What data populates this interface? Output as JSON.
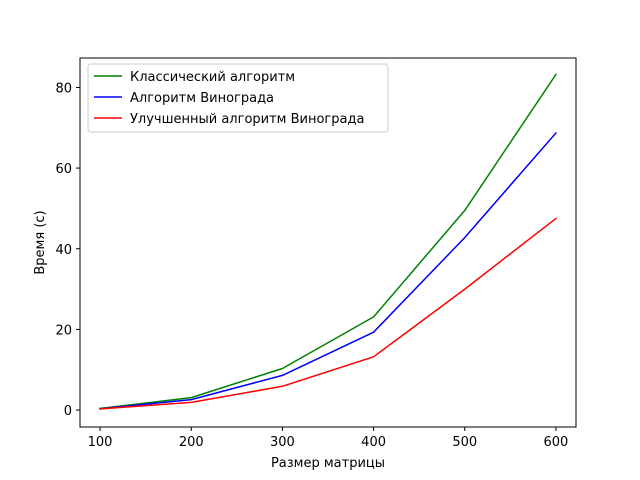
{
  "chart_data": {
    "type": "line",
    "title": "",
    "xlabel": "Размер матрицы",
    "ylabel": "Время (с)",
    "x": [
      100,
      200,
      300,
      400,
      500,
      600
    ],
    "xlim": [
      78,
      622
    ],
    "ylim": [
      -4.2,
      87.3
    ],
    "xticks": [
      100,
      200,
      300,
      400,
      500,
      600
    ],
    "yticks": [
      0,
      20,
      40,
      60,
      80
    ],
    "grid": false,
    "legend_position": "top-left",
    "series": [
      {
        "name": "Классический алгоритм",
        "color": "#008000",
        "values": [
          0.4,
          3.1,
          10.3,
          23.1,
          49.5,
          83.2
        ]
      },
      {
        "name": "Алгоритм Винограда",
        "color": "#0000ff",
        "values": [
          0.3,
          2.6,
          8.6,
          19.3,
          42.8,
          68.7
        ]
      },
      {
        "name": "Улучшенный алгоритм Винограда",
        "color": "#ff0000",
        "values": [
          0.3,
          1.9,
          5.9,
          13.2,
          30.0,
          47.5
        ]
      }
    ]
  }
}
